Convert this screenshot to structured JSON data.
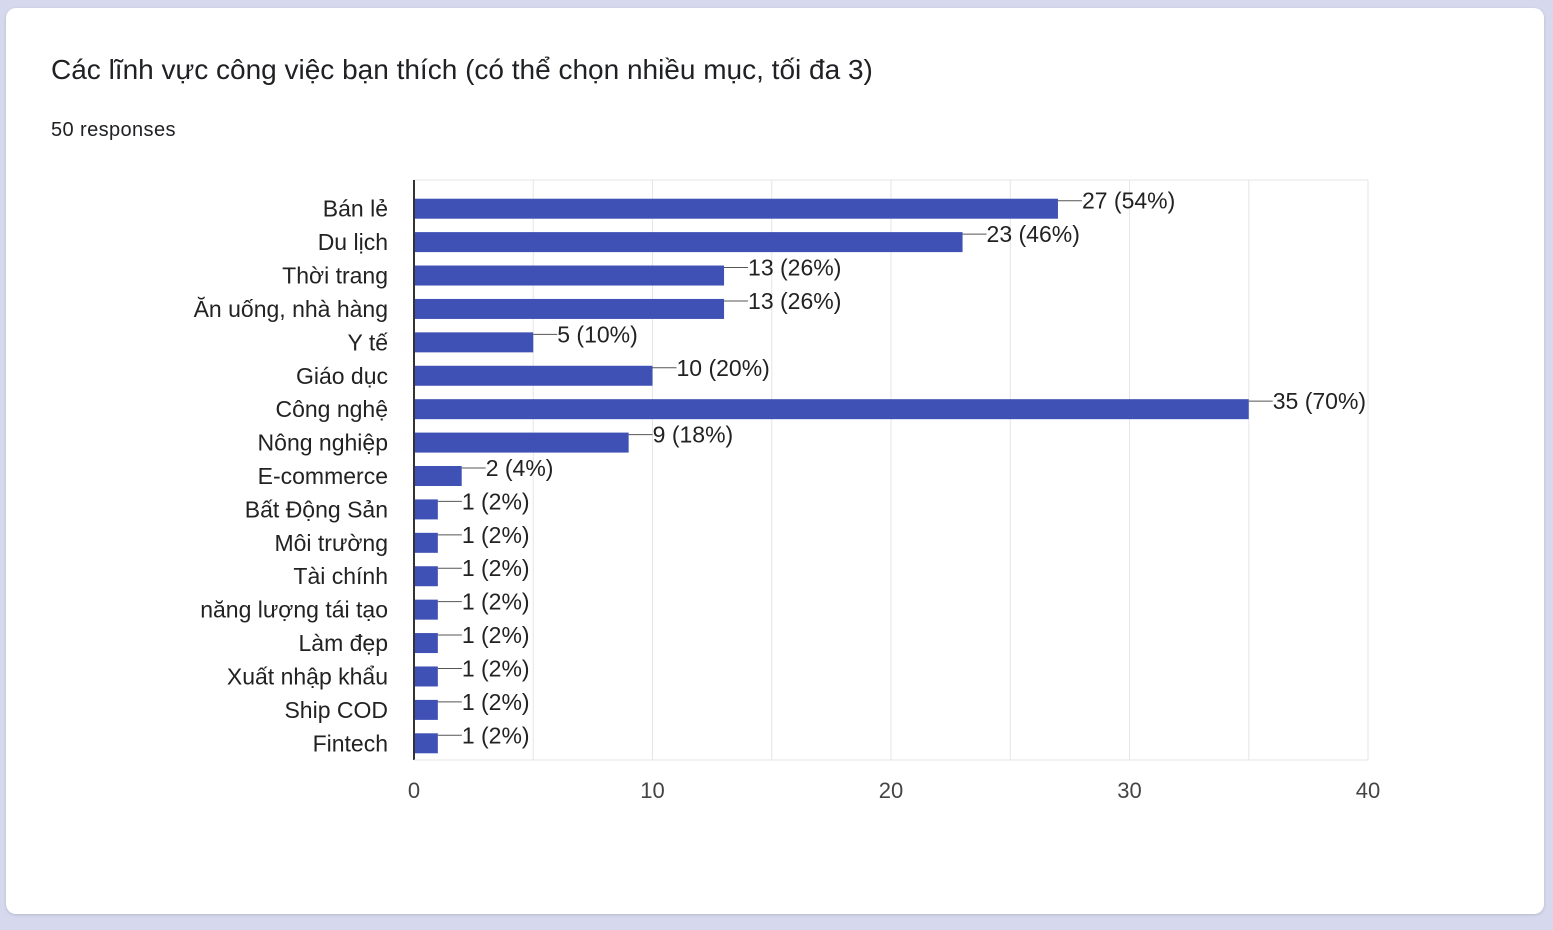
{
  "card": {
    "title": "Các lĩnh vực công việc bạn thích (có thể chọn nhiều mục, tối đa 3)",
    "subtitle": "50 responses"
  },
  "colors": {
    "bar": "#3f51b5",
    "grid": "#e6e6e6",
    "axis": "#333333",
    "background": "#ffffff"
  },
  "chart_data": {
    "type": "bar",
    "orientation": "horizontal",
    "title": "Các lĩnh vực công việc bạn thích (có thể chọn nhiều mục, tối đa 3)",
    "subtitle": "50 responses",
    "categories": [
      "Bán lẻ",
      "Du lịch",
      "Thời trang",
      "Ăn uống, nhà hàng",
      "Y tế",
      "Giáo dục",
      "Công nghệ",
      "Nông nghiệp",
      "E-commerce",
      "Bất Động Sản",
      "Môi trường",
      "Tài chính",
      "năng lượng tái tạo",
      "Làm đẹp",
      "Xuất nhập khẩu",
      "Ship COD",
      "Fintech"
    ],
    "values": [
      27,
      23,
      13,
      13,
      5,
      10,
      35,
      9,
      2,
      1,
      1,
      1,
      1,
      1,
      1,
      1,
      1
    ],
    "value_labels": [
      "27 (54%)",
      "23 (46%)",
      "13 (26%)",
      "13 (26%)",
      "5 (10%)",
      "10 (20%)",
      "35 (70%)",
      "9 (18%)",
      "2 (4%)",
      "1 (2%)",
      "1 (2%)",
      "1 (2%)",
      "1 (2%)",
      "1 (2%)",
      "1 (2%)",
      "1 (2%)",
      "1 (2%)"
    ],
    "xlim": [
      0,
      40
    ],
    "xticks": [
      "0",
      "10",
      "20",
      "30",
      "40"
    ],
    "xlabel": "",
    "ylabel": "",
    "grid": true,
    "legend": "none"
  }
}
